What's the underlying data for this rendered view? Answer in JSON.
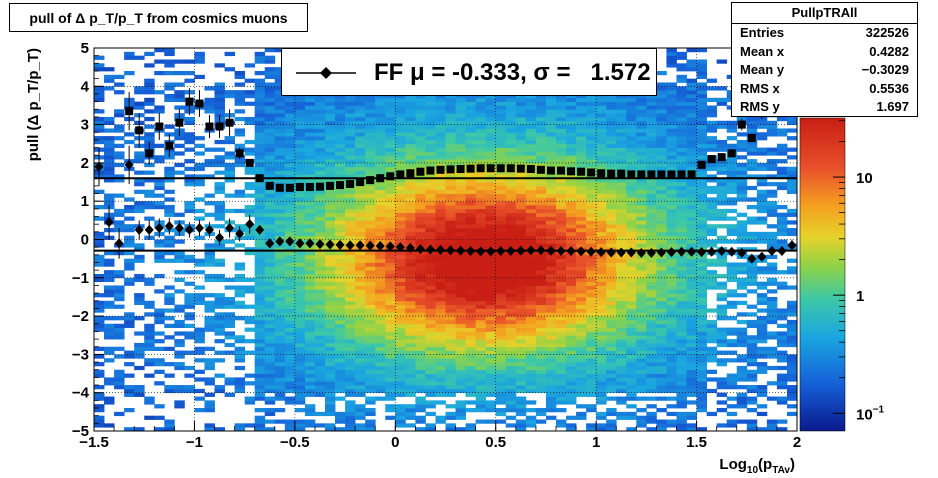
{
  "chart_data": {
    "type": "heatmap",
    "title": "pull of Δ p_T/p_T from cosmics muons",
    "xlabel": "Log10(p_TAv)",
    "ylabel": "pull (Δ p_T/p_T)",
    "xlim": [
      -1.5,
      2
    ],
    "ylim": [
      -5,
      5
    ],
    "x_ticks": [
      "−1.5",
      "−1",
      "−0.5",
      "0",
      "0.5",
      "1",
      "1.5",
      "2"
    ],
    "y_ticks": [
      "−5",
      "−4",
      "−3",
      "−2",
      "−1",
      "0",
      "1",
      "2",
      "3",
      "4",
      "5"
    ],
    "z_scale": "log",
    "z_ticks": [
      "10",
      "1",
      "10−1"
    ],
    "grid": true,
    "stats": {
      "name": "PullpTRAll",
      "rows": [
        {
          "label": "Entries",
          "value": "322526"
        },
        {
          "label": "Mean x",
          "value": "0.4282"
        },
        {
          "label": "Mean y",
          "value": "−0.3029"
        },
        {
          "label": "RMS x",
          "value": "0.5536"
        },
        {
          "label": "RMS y",
          "value": "1.697"
        }
      ]
    },
    "legend": {
      "label": "FF μ = -0.333, σ =   1.572",
      "placement": "top"
    },
    "fit_lines": [
      {
        "name": "mean",
        "y": -0.29
      },
      {
        "name": "sigma",
        "y": 1.6
      }
    ],
    "series": [
      {
        "name": "mean",
        "marker": "diamond",
        "x": [
          -1.475,
          -1.425,
          -1.375,
          -1.325,
          -1.275,
          -1.225,
          -1.175,
          -1.125,
          -1.075,
          -1.025,
          -0.975,
          -0.925,
          -0.875,
          -0.825,
          -0.775,
          -0.725,
          -0.675,
          -0.625,
          -0.575,
          -0.525,
          -0.475,
          -0.425,
          -0.375,
          -0.325,
          -0.275,
          -0.225,
          -0.175,
          -0.125,
          -0.075,
          -0.025,
          0.025,
          0.075,
          0.125,
          0.175,
          0.225,
          0.275,
          0.325,
          0.375,
          0.425,
          0.475,
          0.525,
          0.575,
          0.625,
          0.675,
          0.725,
          0.775,
          0.825,
          0.875,
          0.925,
          0.975,
          1.025,
          1.075,
          1.125,
          1.175,
          1.225,
          1.275,
          1.325,
          1.375,
          1.425,
          1.475,
          1.525,
          1.575,
          1.625,
          1.675,
          1.725,
          1.775,
          1.825,
          1.875,
          1.925,
          1.975
        ],
        "values": [
          1.9,
          0.45,
          -0.1,
          1.95,
          0.25,
          0.25,
          0.3,
          0.35,
          0.3,
          0.25,
          0.3,
          0.25,
          0.05,
          0.3,
          0.15,
          0.4,
          0.25,
          -0.1,
          -0.05,
          -0.05,
          -0.1,
          -0.1,
          -0.12,
          -0.13,
          -0.14,
          -0.15,
          -0.15,
          -0.16,
          -0.17,
          -0.18,
          -0.2,
          -0.22,
          -0.25,
          -0.26,
          -0.27,
          -0.28,
          -0.29,
          -0.3,
          -0.31,
          -0.31,
          -0.3,
          -0.3,
          -0.29,
          -0.28,
          -0.28,
          -0.29,
          -0.3,
          -0.3,
          -0.31,
          -0.32,
          -0.33,
          -0.34,
          -0.34,
          -0.34,
          -0.35,
          -0.35,
          -0.34,
          -0.33,
          -0.32,
          -0.32,
          -0.33,
          -0.32,
          -0.3,
          -0.32,
          -0.35,
          -0.5,
          -0.45,
          -0.3,
          -0.3,
          -0.15
        ],
        "errors": [
          0.5,
          0.45,
          0.4,
          0.5,
          0.25,
          0.25,
          0.25,
          0.22,
          0.2,
          0.2,
          0.22,
          0.2,
          0.2,
          0.25,
          0.2,
          0.25,
          0.1,
          0.05,
          0.04,
          0.03,
          0.03,
          0.02,
          0.02,
          0.02,
          0.02,
          0.02,
          0.02,
          0.02,
          0.02,
          0.02,
          0.02,
          0.02,
          0.02,
          0.02,
          0.02,
          0.02,
          0.02,
          0.02,
          0.02,
          0.02,
          0.02,
          0.02,
          0.02,
          0.02,
          0.02,
          0.02,
          0.02,
          0.02,
          0.02,
          0.02,
          0.02,
          0.02,
          0.02,
          0.02,
          0.02,
          0.02,
          0.03,
          0.03,
          0.03,
          0.03,
          0.04,
          0.04,
          0.05,
          0.06,
          0.08,
          0.1,
          0.1,
          0.12,
          0.12,
          0.15
        ]
      },
      {
        "name": "sigma",
        "marker": "square",
        "x": [
          -1.475,
          -1.425,
          -1.375,
          -1.325,
          -1.275,
          -1.225,
          -1.175,
          -1.125,
          -1.075,
          -1.025,
          -0.975,
          -0.925,
          -0.875,
          -0.825,
          -0.775,
          -0.725,
          -0.675,
          -0.625,
          -0.575,
          -0.525,
          -0.475,
          -0.425,
          -0.375,
          -0.325,
          -0.275,
          -0.225,
          -0.175,
          -0.125,
          -0.075,
          -0.025,
          0.025,
          0.075,
          0.125,
          0.175,
          0.225,
          0.275,
          0.325,
          0.375,
          0.425,
          0.475,
          0.525,
          0.575,
          0.625,
          0.675,
          0.725,
          0.775,
          0.825,
          0.875,
          0.925,
          0.975,
          1.025,
          1.075,
          1.125,
          1.175,
          1.225,
          1.275,
          1.325,
          1.375,
          1.425,
          1.475,
          1.525,
          1.575,
          1.625,
          1.675,
          1.725,
          1.775,
          1.825,
          1.875,
          1.925,
          1.975
        ],
        "values": [
          null,
          null,
          null,
          3.35,
          2.85,
          2.25,
          2.95,
          2.45,
          3.05,
          3.6,
          3.55,
          2.95,
          2.95,
          3.05,
          2.25,
          2.0,
          1.6,
          1.4,
          1.35,
          1.35,
          1.37,
          1.37,
          1.38,
          1.4,
          1.42,
          1.45,
          1.5,
          1.55,
          1.6,
          1.65,
          1.7,
          1.73,
          1.77,
          1.8,
          1.82,
          1.83,
          1.84,
          1.85,
          1.86,
          1.86,
          1.86,
          1.86,
          1.85,
          1.84,
          1.82,
          1.8,
          1.8,
          1.78,
          1.77,
          1.75,
          1.73,
          1.72,
          1.72,
          1.7,
          1.7,
          1.7,
          1.7,
          1.7,
          1.7,
          1.7,
          1.95,
          2.1,
          2.15,
          2.25,
          3.0,
          2.65,
          3.3,
          3.6,
          3.65,
          4.05
        ],
        "errors": [
          0,
          0,
          0,
          0.5,
          0.45,
          0.3,
          0.35,
          0.3,
          0.35,
          0.35,
          0.35,
          0.3,
          0.3,
          0.35,
          0.15,
          0.1,
          0.05,
          0.03,
          0.02,
          0.02,
          0.02,
          0.02,
          0.02,
          0.02,
          0.02,
          0.02,
          0.02,
          0.02,
          0.02,
          0.02,
          0.02,
          0.02,
          0.02,
          0.02,
          0.02,
          0.02,
          0.02,
          0.02,
          0.02,
          0.02,
          0.02,
          0.02,
          0.02,
          0.02,
          0.02,
          0.02,
          0.02,
          0.02,
          0.02,
          0.02,
          0.02,
          0.02,
          0.02,
          0.02,
          0.02,
          0.02,
          0.02,
          0.02,
          0.02,
          0.02,
          0.03,
          0.04,
          0.05,
          0.05,
          0.15,
          0.1,
          0.15,
          0.2,
          0.2,
          0.3
        ]
      }
    ]
  }
}
